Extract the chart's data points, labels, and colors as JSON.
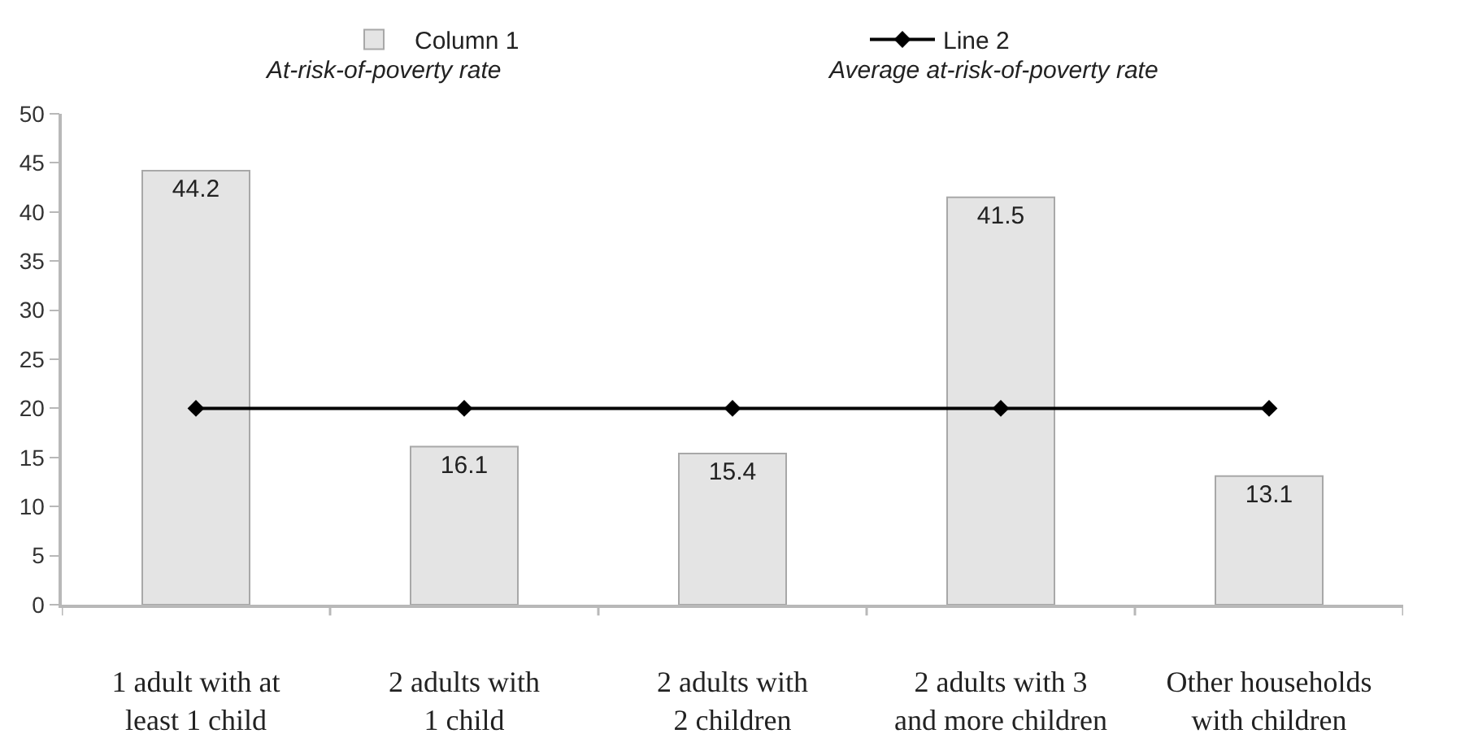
{
  "chart_data": {
    "type": "bar",
    "categories": [
      "1 adult with at\nleast 1 child",
      "2 adults with\n1 child",
      "2 adults with\n2 children",
      "2 adults with 3\nand more children",
      "Other households\nwith children"
    ],
    "series": [
      {
        "name": "Column 1",
        "color": "#e4e4e4",
        "values": [
          44.2,
          16.1,
          15.4,
          41.5,
          13.1
        ],
        "value_labels": [
          "44.2",
          "16.1",
          "15.4",
          "41.5",
          "13.1"
        ]
      },
      {
        "name": "Line 2",
        "type": "line",
        "color": "#000000",
        "values": [
          20,
          20,
          20,
          20,
          20
        ]
      }
    ],
    "ylim": [
      0,
      50
    ],
    "yticks": [
      0,
      5,
      10,
      15,
      20,
      25,
      30,
      35,
      40,
      45,
      50
    ],
    "marker": "diamond",
    "line_style": "solid",
    "legend": "top",
    "annotations": [
      "At-risk-of-poverty rate",
      "Average at-risk-of-poverty rate"
    ]
  }
}
